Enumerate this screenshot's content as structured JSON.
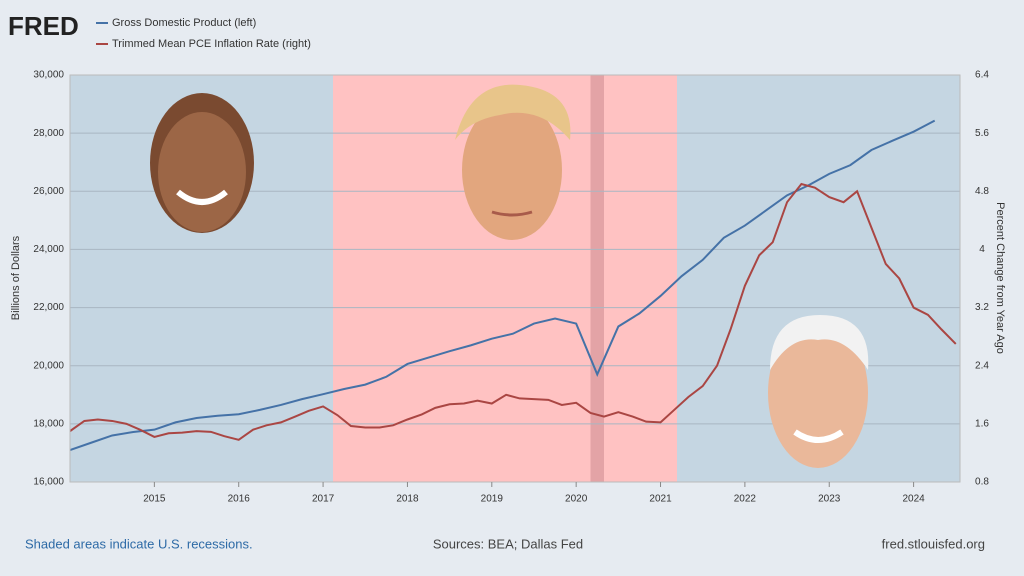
{
  "logo": "FRED",
  "chart_data": {
    "type": "line",
    "y_label": "Billions of Dollars",
    "y2_label": "Percent Change from Year Ago",
    "xlim": [
      2014.0,
      2024.55
    ],
    "xticks": [
      2015,
      2016,
      2017,
      2018,
      2019,
      2020,
      2021,
      2022,
      2023,
      2024
    ],
    "ylim": [
      16000,
      30000
    ],
    "yticks": [
      {
        "value": 16000,
        "label": "16,000"
      },
      {
        "value": 18000,
        "label": "18,000"
      },
      {
        "value": 20000,
        "label": "20,000"
      },
      {
        "value": 22000,
        "label": "22,000"
      },
      {
        "value": 24000,
        "label": "24,000"
      },
      {
        "value": 26000,
        "label": "26,000"
      },
      {
        "value": 28000,
        "label": "28,000"
      },
      {
        "value": 30000,
        "label": "30,000"
      }
    ],
    "y2lim": [
      0.8,
      6.4
    ],
    "y2ticks": [
      0.8,
      1.6,
      2.4,
      3.2,
      4.0,
      4.8,
      5.6,
      6.4
    ],
    "grid": true,
    "recessions": [
      {
        "start": 2020.17,
        "end": 2020.33
      }
    ],
    "series": [
      {
        "name": "Gross Domestic Product (left)",
        "color": "#4572a7",
        "x": [
          2014.0,
          2014.25,
          2014.5,
          2014.75,
          2015.0,
          2015.25,
          2015.5,
          2015.75,
          2016.0,
          2016.25,
          2016.5,
          2016.75,
          2017.0,
          2017.25,
          2017.5,
          2017.75,
          2018.0,
          2018.25,
          2018.5,
          2018.75,
          2019.0,
          2019.25,
          2019.5,
          2019.75,
          2020.0,
          2020.25,
          2020.5,
          2020.75,
          2021.0,
          2021.25,
          2021.5,
          2021.75,
          2022.0,
          2022.25,
          2022.5,
          2022.75,
          2023.0,
          2023.25,
          2023.5,
          2023.75,
          2024.0,
          2024.25
        ],
        "values": [
          17100,
          17350,
          17600,
          17720,
          17800,
          18050,
          18200,
          18280,
          18330,
          18480,
          18650,
          18850,
          19020,
          19200,
          19350,
          19620,
          20060,
          20280,
          20500,
          20700,
          20930,
          21100,
          21450,
          21625,
          21450,
          19700,
          21350,
          21800,
          22400,
          23080,
          23640,
          24400,
          24820,
          25340,
          25860,
          26200,
          26600,
          26900,
          27420,
          27740,
          28050,
          28430
        ]
      },
      {
        "name": "Trimmed Mean PCE Inflation Rate (right)",
        "color": "#aa4643",
        "axis": "y2",
        "x": [
          2014.0,
          2014.17,
          2014.33,
          2014.5,
          2014.67,
          2014.83,
          2015.0,
          2015.17,
          2015.33,
          2015.5,
          2015.67,
          2015.83,
          2016.0,
          2016.17,
          2016.33,
          2016.5,
          2016.67,
          2016.83,
          2017.0,
          2017.17,
          2017.33,
          2017.5,
          2017.67,
          2017.83,
          2018.0,
          2018.17,
          2018.33,
          2018.5,
          2018.67,
          2018.83,
          2019.0,
          2019.17,
          2019.33,
          2019.5,
          2019.67,
          2019.83,
          2020.0,
          2020.17,
          2020.33,
          2020.5,
          2020.67,
          2020.83,
          2021.0,
          2021.17,
          2021.33,
          2021.5,
          2021.67,
          2021.83,
          2022.0,
          2022.17,
          2022.33,
          2022.5,
          2022.67,
          2022.83,
          2023.0,
          2023.17,
          2023.33,
          2023.5,
          2023.67,
          2023.83,
          2024.0,
          2024.17,
          2024.33,
          2024.5
        ],
        "values": [
          1.5,
          1.64,
          1.66,
          1.64,
          1.6,
          1.52,
          1.42,
          1.47,
          1.48,
          1.5,
          1.49,
          1.43,
          1.38,
          1.52,
          1.58,
          1.62,
          1.7,
          1.78,
          1.84,
          1.72,
          1.57,
          1.55,
          1.55,
          1.58,
          1.66,
          1.73,
          1.82,
          1.87,
          1.88,
          1.92,
          1.88,
          2.0,
          1.95,
          1.94,
          1.93,
          1.86,
          1.89,
          1.75,
          1.7,
          1.76,
          1.7,
          1.63,
          1.62,
          1.8,
          1.97,
          2.12,
          2.4,
          2.9,
          3.5,
          3.92,
          4.1,
          4.65,
          4.9,
          4.85,
          4.72,
          4.65,
          4.8,
          4.3,
          3.8,
          3.6,
          3.2,
          3.1,
          2.9,
          2.7
        ]
      }
    ]
  },
  "footer": {
    "left": "Shaded areas indicate U.S. recessions.",
    "center": "Sources: BEA; Dallas Fed",
    "right": "fred.stlouisfed.org"
  }
}
